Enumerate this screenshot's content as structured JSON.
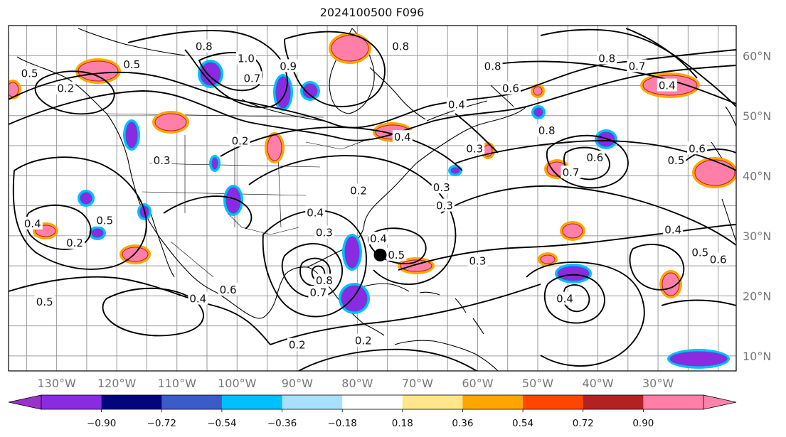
{
  "title": "2024100500 F096",
  "map": {
    "lon_range": [
      -138,
      -17
    ],
    "lat_range": [
      7.5,
      65
    ],
    "lon_ticks": [
      {
        "v": -130,
        "label": "130°W"
      },
      {
        "v": -120,
        "label": "120°W"
      },
      {
        "v": -110,
        "label": "110°W"
      },
      {
        "v": -100,
        "label": "100°W"
      },
      {
        "v": -90,
        "label": "90°W"
      },
      {
        "v": -80,
        "label": "80°W"
      },
      {
        "v": -70,
        "label": "70°W"
      },
      {
        "v": -60,
        "label": "60°W"
      },
      {
        "v": -50,
        "label": "50°W"
      },
      {
        "v": -40,
        "label": "40°W"
      },
      {
        "v": -30,
        "label": "30°W"
      }
    ],
    "lat_ticks": [
      {
        "v": 10,
        "label": "10°N"
      },
      {
        "v": 20,
        "label": "20°N"
      },
      {
        "v": 30,
        "label": "30°N"
      },
      {
        "v": 40,
        "label": "40°N"
      },
      {
        "v": 50,
        "label": "50°N"
      },
      {
        "v": 60,
        "label": "60°N"
      }
    ],
    "contour_labels": [
      {
        "lon": -128.5,
        "lat": 54.5,
        "text": "0.2"
      },
      {
        "lon": -117.5,
        "lat": 58.5,
        "text": "0.5"
      },
      {
        "lon": -105.5,
        "lat": 61.5,
        "text": "0.8"
      },
      {
        "lon": -98.5,
        "lat": 59.5,
        "text": "1.0"
      },
      {
        "lon": -97.5,
        "lat": 56.2,
        "text": "0.7"
      },
      {
        "lon": -91.5,
        "lat": 58.2,
        "text": "0.9"
      },
      {
        "lon": -99.5,
        "lat": 45.8,
        "text": "0.2"
      },
      {
        "lon": -112.5,
        "lat": 42.5,
        "text": "0.3"
      },
      {
        "lon": -72.5,
        "lat": 46.4,
        "text": "0.4"
      },
      {
        "lon": -57.5,
        "lat": 58.2,
        "text": "0.8"
      },
      {
        "lon": -54.5,
        "lat": 54.5,
        "text": "0.6"
      },
      {
        "lon": -63.5,
        "lat": 51.8,
        "text": "0.4"
      },
      {
        "lon": -72.8,
        "lat": 61.5,
        "text": "0.8"
      },
      {
        "lon": -38.5,
        "lat": 59.5,
        "text": "0.8"
      },
      {
        "lon": -33.5,
        "lat": 58.2,
        "text": "0.7"
      },
      {
        "lon": -28.5,
        "lat": 55.0,
        "text": "0.4"
      },
      {
        "lon": -44.5,
        "lat": 40.5,
        "text": "0.7"
      },
      {
        "lon": -40.5,
        "lat": 43.0,
        "text": "0.6"
      },
      {
        "lon": -48.5,
        "lat": 47.5,
        "text": "0.8"
      },
      {
        "lon": -27.0,
        "lat": 42.5,
        "text": "0.5"
      },
      {
        "lon": -23.5,
        "lat": 44.5,
        "text": "0.6"
      },
      {
        "lon": -65.5,
        "lat": 35.0,
        "text": "0.3"
      },
      {
        "lon": -60.0,
        "lat": 25.8,
        "text": "0.3"
      },
      {
        "lon": -27.5,
        "lat": 31.0,
        "text": "0.4"
      },
      {
        "lon": -23.0,
        "lat": 27.2,
        "text": "0.5"
      },
      {
        "lon": -20.0,
        "lat": 26.0,
        "text": "0.6"
      },
      {
        "lon": -45.5,
        "lat": 19.5,
        "text": "0.4"
      },
      {
        "lon": -134.0,
        "lat": 32.0,
        "text": "0.4"
      },
      {
        "lon": -127.0,
        "lat": 28.8,
        "text": "0.2"
      },
      {
        "lon": -122.0,
        "lat": 32.5,
        "text": "0.5"
      },
      {
        "lon": -132.0,
        "lat": 19.0,
        "text": "0.5"
      },
      {
        "lon": -106.5,
        "lat": 19.5,
        "text": "0.4"
      },
      {
        "lon": -101.5,
        "lat": 21.0,
        "text": "0.6"
      },
      {
        "lon": -87.0,
        "lat": 33.8,
        "text": "0.4"
      },
      {
        "lon": -85.5,
        "lat": 30.5,
        "text": "0.3"
      },
      {
        "lon": -79.8,
        "lat": 37.5,
        "text": "0.2"
      },
      {
        "lon": -76.5,
        "lat": 29.5,
        "text": "0.4"
      },
      {
        "lon": -73.5,
        "lat": 26.8,
        "text": "0.5"
      },
      {
        "lon": -86.5,
        "lat": 20.5,
        "text": "0.7"
      },
      {
        "lon": -85.5,
        "lat": 22.5,
        "text": "0.8"
      },
      {
        "lon": -90.0,
        "lat": 11.8,
        "text": "0.2"
      },
      {
        "lon": -79.0,
        "lat": 12.5,
        "text": "0.2"
      },
      {
        "lon": -66.0,
        "lat": 38.0,
        "text": "0.3"
      },
      {
        "lon": -134.5,
        "lat": 57.0,
        "text": "0.5"
      },
      {
        "lon": -60.5,
        "lat": 44.5,
        "text": "0.3"
      }
    ],
    "marker": {
      "lon": -76.2,
      "lat": 26.8
    }
  },
  "colorbar": {
    "colors": [
      "#8a2be2",
      "#02057c",
      "#3b5bc8",
      "#00bfff",
      "#a9e0ff",
      "#ffffff",
      "#ffe68a",
      "#ffa500",
      "#ff4500",
      "#b22222",
      "#ff7fa8"
    ],
    "under_color": "#9932cc",
    "over_color": "#ff82ab",
    "tick_labels": [
      "−0.90",
      "−0.72",
      "−0.54",
      "−0.36",
      "−0.18",
      "0.18",
      "0.36",
      "0.54",
      "0.72",
      "0.90"
    ]
  }
}
